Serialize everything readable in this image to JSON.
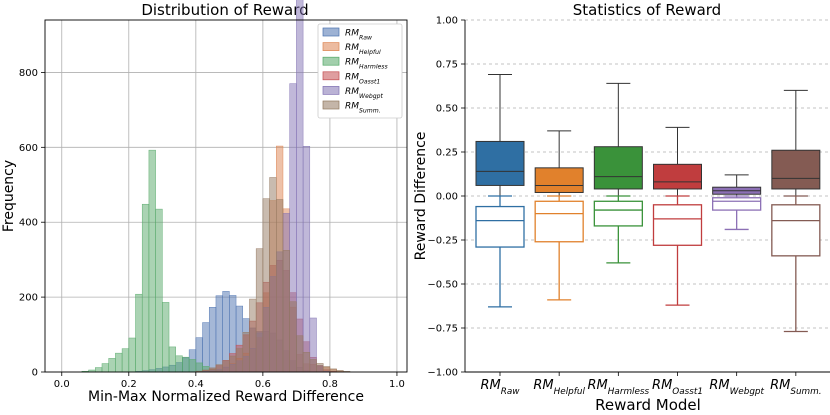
{
  "chart_data": [
    {
      "type": "histogram",
      "title": "Distribution of Reward",
      "xlabel": "Min-Max Normalized Reward Difference",
      "ylabel": "Frequency",
      "xlim": [
        -0.05,
        1.03
      ],
      "ylim": [
        0,
        940
      ],
      "xticks": [
        "0.0",
        "0.2",
        "0.4",
        "0.6",
        "0.8",
        "1.0"
      ],
      "yticks": [
        "0",
        "200",
        "400",
        "600",
        "800"
      ],
      "legend_position": "top-right",
      "grid": true,
      "bin_width": 0.02,
      "series": [
        {
          "name": "RM",
          "sub": "Raw",
          "color": "#4c72b0",
          "peak_x": 0.49,
          "peak": 215,
          "sigma": 0.06,
          "extra": [
            [
              0.63,
              90,
              0.04
            ],
            [
              0.33,
              12,
              0.05
            ]
          ]
        },
        {
          "name": "RM",
          "sub": "Helpful",
          "color": "#dd8452",
          "peak_x": 0.65,
          "peak": 580,
          "sigma": 0.025,
          "extra": [
            [
              0.58,
              60,
              0.05
            ],
            [
              0.75,
              20,
              0.04
            ]
          ]
        },
        {
          "name": "RM",
          "sub": "Harmless",
          "color": "#55a868",
          "peak_x": 0.27,
          "peak": 562,
          "sigma": 0.025,
          "extra": [
            [
              0.2,
              60,
              0.05
            ],
            [
              0.36,
              40,
              0.05
            ]
          ]
        },
        {
          "name": "RM",
          "sub": "Oasst1",
          "color": "#c44e52",
          "peak_x": 0.65,
          "peak": 290,
          "sigma": 0.05,
          "extra": [
            [
              0.55,
              60,
              0.05
            ]
          ]
        },
        {
          "name": "RM",
          "sub": "Webgpt",
          "color": "#8172b3",
          "peak_x": 0.71,
          "peak": 884,
          "sigma": 0.02,
          "extra": [
            [
              0.66,
              300,
              0.04
            ],
            [
              0.58,
              40,
              0.06
            ]
          ]
        },
        {
          "name": "RM",
          "sub": "Summ.",
          "color": "#937860",
          "peak_x": 0.63,
          "peak": 510,
          "sigma": 0.04,
          "extra": [
            [
              0.53,
              40,
              0.05
            ],
            [
              0.73,
              30,
              0.05
            ]
          ]
        }
      ]
    },
    {
      "type": "box",
      "title": "Statistics of Reward",
      "xlabel": "Reward Model",
      "ylabel": "Reward Difference",
      "ylim": [
        -1.0,
        1.0
      ],
      "yticks": [
        "1.00",
        "0.75",
        "0.50",
        "0.25",
        "0.00",
        "−0.25",
        "−0.50",
        "−0.75",
        "−1.00"
      ],
      "ytick_values": [
        1.0,
        0.75,
        0.5,
        0.25,
        0.0,
        -0.25,
        -0.5,
        -0.75,
        -1.0
      ],
      "grid": true,
      "categories": [
        {
          "name": "RM",
          "sub": "Raw",
          "color": "#2f6fa3",
          "pos": {
            "q1": 0.06,
            "median": 0.14,
            "q3": 0.31,
            "whislo": 0.0,
            "whishi": 0.69
          },
          "neg": {
            "q1": -0.29,
            "median": -0.14,
            "q3": -0.06,
            "whislo": -0.63,
            "whishi": 0.0
          }
        },
        {
          "name": "RM",
          "sub": "Helpful",
          "color": "#e1812c",
          "pos": {
            "q1": 0.02,
            "median": 0.06,
            "q3": 0.16,
            "whislo": 0.0,
            "whishi": 0.37
          },
          "neg": {
            "q1": -0.26,
            "median": -0.1,
            "q3": -0.03,
            "whislo": -0.59,
            "whishi": 0.0
          }
        },
        {
          "name": "RM",
          "sub": "Harmless",
          "color": "#3a923a",
          "pos": {
            "q1": 0.04,
            "median": 0.11,
            "q3": 0.28,
            "whislo": 0.0,
            "whishi": 0.64
          },
          "neg": {
            "q1": -0.17,
            "median": -0.08,
            "q3": -0.03,
            "whislo": -0.38,
            "whishi": 0.0
          }
        },
        {
          "name": "RM",
          "sub": "Oasst1",
          "color": "#c03d3e",
          "pos": {
            "q1": 0.04,
            "median": 0.08,
            "q3": 0.18,
            "whislo": 0.0,
            "whishi": 0.39
          },
          "neg": {
            "q1": -0.28,
            "median": -0.13,
            "q3": -0.05,
            "whislo": -0.62,
            "whishi": 0.0
          }
        },
        {
          "name": "RM",
          "sub": "Webgpt",
          "color": "#8c70b5",
          "pos": {
            "q1": 0.01,
            "median": 0.03,
            "q3": 0.05,
            "whislo": 0.0,
            "whishi": 0.12
          },
          "neg": {
            "q1": -0.08,
            "median": -0.03,
            "q3": -0.01,
            "whislo": -0.19,
            "whishi": 0.0
          }
        },
        {
          "name": "RM",
          "sub": "Summ.",
          "color": "#845b53",
          "pos": {
            "q1": 0.04,
            "median": 0.1,
            "q3": 0.26,
            "whislo": 0.0,
            "whishi": 0.6
          },
          "neg": {
            "q1": -0.34,
            "median": -0.14,
            "q3": -0.05,
            "whislo": -0.77,
            "whishi": 0.0
          }
        }
      ]
    }
  ]
}
